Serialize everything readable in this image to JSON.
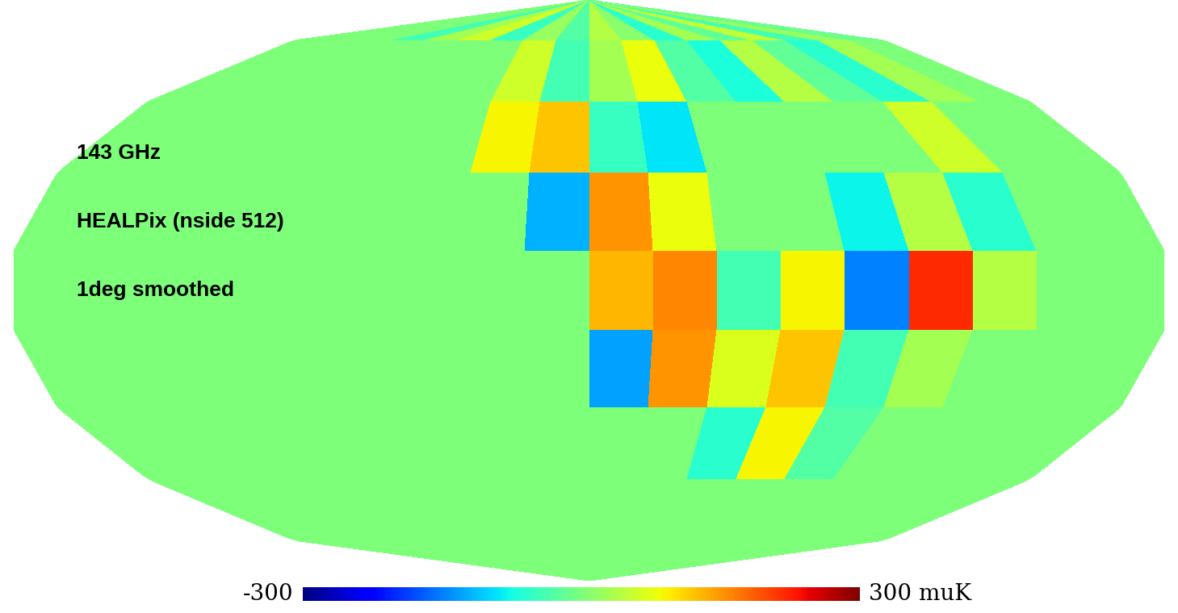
{
  "chart_data": {
    "type": "map",
    "annotations": [
      "143 GHz",
      "HEALPix (nside 512)",
      "1deg smoothed"
    ],
    "grid": false,
    "tick_labels": false,
    "lon_edges": [
      -180,
      -160,
      -140,
      -120,
      -100,
      -80,
      -60,
      -40,
      -20,
      0,
      20,
      40,
      60,
      80,
      100,
      120,
      140,
      160,
      180
    ],
    "lat_edges": [
      90,
      70,
      50,
      30,
      10,
      -10,
      -30,
      -50,
      -70,
      -90
    ],
    "cells": [
      [
        0,
        0,
        0,
        -40,
        30,
        60,
        -50,
        20,
        -30,
        40,
        10,
        -60,
        30,
        -20,
        50,
        -40,
        20,
        -10
      ],
      [
        0,
        0,
        0,
        0,
        0,
        0,
        0,
        60,
        -40,
        30,
        80,
        -30,
        -70,
        40,
        -20,
        -60,
        30,
        0
      ],
      [
        0,
        0,
        0,
        0,
        0,
        0,
        0,
        90,
        120,
        -50,
        -90,
        0,
        0,
        0,
        0,
        60,
        0,
        0
      ],
      [
        0,
        0,
        0,
        0,
        0,
        0,
        0,
        0,
        -120,
        150,
        80,
        0,
        0,
        -80,
        40,
        -60,
        0,
        0
      ],
      [
        0,
        0,
        0,
        0,
        0,
        0,
        0,
        0,
        0,
        130,
        160,
        -40,
        90,
        -150,
        220,
        40,
        0,
        0
      ],
      [
        0,
        0,
        0,
        0,
        0,
        0,
        0,
        0,
        0,
        -130,
        150,
        70,
        120,
        -40,
        30,
        0,
        0,
        0
      ],
      [
        0,
        0,
        0,
        0,
        0,
        0,
        0,
        0,
        0,
        0,
        0,
        -60,
        90,
        -30,
        0,
        0,
        0,
        0
      ],
      [
        0,
        0,
        0,
        0,
        0,
        0,
        0,
        0,
        0,
        0,
        0,
        0,
        0,
        0,
        0,
        0,
        0,
        0
      ],
      [
        0,
        0,
        0,
        0,
        0,
        0,
        0,
        0,
        0,
        0,
        0,
        0,
        0,
        0,
        0,
        0,
        0,
        0
      ]
    ],
    "colorbar": {
      "range": [
        -300,
        300
      ],
      "ticks": [
        -300,
        {
          "value": 300,
          "label": "300 muK"
        }
      ]
    }
  }
}
